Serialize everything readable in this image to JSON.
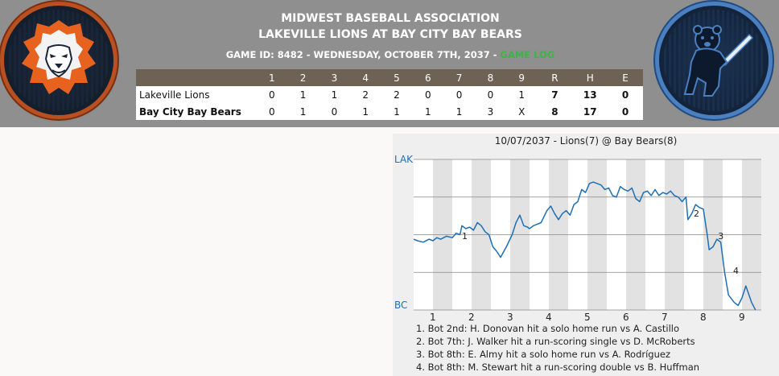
{
  "header": {
    "league": "MIDWEST BASEBALL ASSOCIATION",
    "matchup": "LAKEVILLE LIONS AT BAY CITY BAY BEARS",
    "game_info": "GAME ID: 8482 - WEDNESDAY, OCTOBER 7TH, 2037 - ",
    "game_log_label": "GAME LOG",
    "game_log_color": "#3fb24a"
  },
  "logos": {
    "away": "lion-logo-icon",
    "home": "bear-batter-logo-icon"
  },
  "linescore": {
    "innings": [
      "1",
      "2",
      "3",
      "4",
      "5",
      "6",
      "7",
      "8",
      "9"
    ],
    "totals_headers": [
      "R",
      "H",
      "E"
    ],
    "rows": [
      {
        "team": "Lakeville Lions",
        "innings": [
          "0",
          "1",
          "1",
          "2",
          "2",
          "0",
          "0",
          "0",
          "1"
        ],
        "r": "7",
        "h": "13",
        "e": "0"
      },
      {
        "team": "Bay City Bay Bears",
        "innings": [
          "0",
          "1",
          "0",
          "1",
          "1",
          "1",
          "1",
          "3",
          "X"
        ],
        "r": "8",
        "h": "17",
        "e": "0"
      }
    ]
  },
  "chart_data": {
    "type": "line",
    "title": "10/07/2037 - Lions(7) @ Bay Bears(8)",
    "y_top_label": "LAK",
    "y_bottom_label": "BC",
    "y_label_color": "#1f6fb5",
    "line_color": "#1f6fb5",
    "ylim": [
      0,
      100
    ],
    "xlim": [
      0.5,
      9.5
    ],
    "x_ticks": [
      "1",
      "2",
      "3",
      "4",
      "5",
      "6",
      "7",
      "8",
      "9"
    ],
    "series": [
      {
        "points": [
          [
            0.5,
            47
          ],
          [
            0.6,
            46
          ],
          [
            0.75,
            45
          ],
          [
            0.9,
            47
          ],
          [
            1.0,
            46
          ],
          [
            1.1,
            48
          ],
          [
            1.2,
            47
          ],
          [
            1.35,
            49
          ],
          [
            1.5,
            48
          ],
          [
            1.6,
            51
          ],
          [
            1.7,
            50
          ],
          [
            1.75,
            56
          ],
          [
            1.85,
            54
          ],
          [
            1.95,
            55
          ],
          [
            2.05,
            53
          ],
          [
            2.15,
            58
          ],
          [
            2.25,
            56
          ],
          [
            2.35,
            52
          ],
          [
            2.45,
            50
          ],
          [
            2.55,
            42
          ],
          [
            2.65,
            39
          ],
          [
            2.75,
            35
          ],
          [
            2.9,
            42
          ],
          [
            3.05,
            50
          ],
          [
            3.15,
            58
          ],
          [
            3.25,
            63
          ],
          [
            3.35,
            56
          ],
          [
            3.45,
            55
          ],
          [
            3.5,
            54
          ],
          [
            3.6,
            56
          ],
          [
            3.7,
            57
          ],
          [
            3.8,
            58
          ],
          [
            3.95,
            66
          ],
          [
            4.05,
            69
          ],
          [
            4.15,
            64
          ],
          [
            4.25,
            60
          ],
          [
            4.35,
            64
          ],
          [
            4.45,
            66
          ],
          [
            4.55,
            63
          ],
          [
            4.65,
            70
          ],
          [
            4.75,
            72
          ],
          [
            4.85,
            80
          ],
          [
            4.95,
            78
          ],
          [
            5.05,
            84
          ],
          [
            5.15,
            85
          ],
          [
            5.25,
            84
          ],
          [
            5.35,
            83
          ],
          [
            5.45,
            80
          ],
          [
            5.55,
            81
          ],
          [
            5.65,
            76
          ],
          [
            5.75,
            75
          ],
          [
            5.85,
            82
          ],
          [
            5.95,
            80
          ],
          [
            6.05,
            79
          ],
          [
            6.15,
            81
          ],
          [
            6.25,
            74
          ],
          [
            6.35,
            72
          ],
          [
            6.45,
            78
          ],
          [
            6.55,
            79
          ],
          [
            6.65,
            76
          ],
          [
            6.75,
            80
          ],
          [
            6.85,
            76
          ],
          [
            6.95,
            78
          ],
          [
            7.05,
            77
          ],
          [
            7.15,
            79
          ],
          [
            7.25,
            76
          ],
          [
            7.35,
            75
          ],
          [
            7.45,
            72
          ],
          [
            7.55,
            75
          ],
          [
            7.6,
            60
          ],
          [
            7.7,
            64
          ],
          [
            7.8,
            70
          ],
          [
            7.9,
            68
          ],
          [
            8.0,
            67
          ],
          [
            8.1,
            50
          ],
          [
            8.15,
            40
          ],
          [
            8.25,
            42
          ],
          [
            8.35,
            47
          ],
          [
            8.45,
            45
          ],
          [
            8.55,
            25
          ],
          [
            8.65,
            10
          ],
          [
            8.8,
            5
          ],
          [
            8.9,
            3
          ],
          [
            9.0,
            8
          ],
          [
            9.1,
            16
          ],
          [
            9.25,
            5
          ],
          [
            9.35,
            0
          ]
        ]
      }
    ],
    "annotations": [
      {
        "label": "1",
        "x": 1.75,
        "y": 47
      },
      {
        "label": "2",
        "x": 7.75,
        "y": 62
      },
      {
        "label": "3",
        "x": 8.38,
        "y": 47
      },
      {
        "label": "4",
        "x": 8.77,
        "y": 24
      }
    ],
    "notes": [
      "1. Bot 2nd: H. Donovan hit a solo home run vs A. Castillo",
      "2. Bot 7th: J. Walker hit a run-scoring single vs D. McRoberts",
      "3. Bot 8th: E. Almy hit a solo home run vs A. Rodríguez",
      "4. Bot 8th: M. Stewart hit a run-scoring double vs B. Huffman"
    ]
  }
}
